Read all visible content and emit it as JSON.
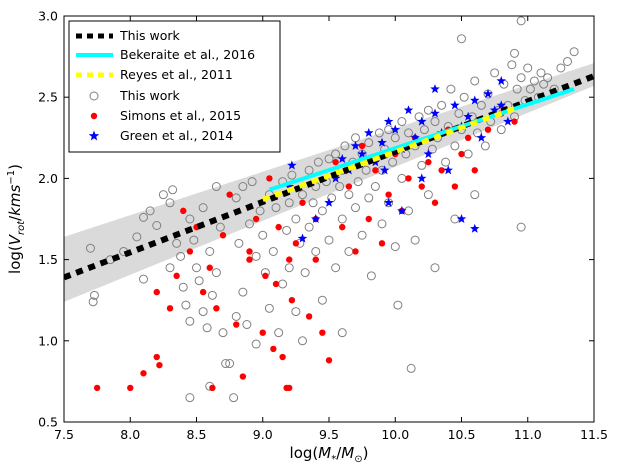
{
  "chart_data": {
    "type": "scatter",
    "xlabel": "log(M_*/M_⊙)",
    "ylabel": "log(V_rot/kms^-1)",
    "xlim": [
      7.5,
      11.5
    ],
    "ylim": [
      0.5,
      3.0
    ],
    "xticks": [
      "7.5",
      "8.0",
      "8.5",
      "9.0",
      "9.5",
      "10.0",
      "10.5",
      "11.0",
      "11.5"
    ],
    "yticks": [
      "0.5",
      "1.0",
      "1.5",
      "2.0",
      "2.5",
      "3.0"
    ],
    "legend_position": "top-left",
    "grid": false,
    "series": [
      {
        "name": "This work",
        "kind": "line",
        "style": "dashed",
        "color": "#000000",
        "x": [
          7.5,
          11.5
        ],
        "y": [
          1.39,
          2.63
        ]
      },
      {
        "name": "Bekeraite et al., 2016",
        "kind": "line",
        "style": "solid",
        "color": "#00ffff",
        "x": [
          9.05,
          11.35
        ],
        "y": [
          1.93,
          2.55
        ]
      },
      {
        "name": "Reyes et al., 2011",
        "kind": "line",
        "style": "dashed",
        "color": "#ffff00",
        "x": [
          9.0,
          10.9
        ],
        "y": [
          1.87,
          2.43
        ]
      },
      {
        "name": "This work",
        "kind": "scatter",
        "marker": "open-circle",
        "color": "#808080",
        "points": [
          [
            7.7,
            1.57
          ],
          [
            7.73,
            1.28
          ],
          [
            7.72,
            1.24
          ],
          [
            7.85,
            1.5
          ],
          [
            7.95,
            1.55
          ],
          [
            8.05,
            1.64
          ],
          [
            8.1,
            1.76
          ],
          [
            8.15,
            1.8
          ],
          [
            8.2,
            1.71
          ],
          [
            8.1,
            1.38
          ],
          [
            8.25,
            1.9
          ],
          [
            8.3,
            1.85
          ],
          [
            8.3,
            1.45
          ],
          [
            8.35,
            1.6
          ],
          [
            8.32,
            1.93
          ],
          [
            8.38,
            1.52
          ],
          [
            8.4,
            1.33
          ],
          [
            8.42,
            1.22
          ],
          [
            8.45,
            1.75
          ],
          [
            8.45,
            1.12
          ],
          [
            8.48,
            1.62
          ],
          [
            8.5,
            1.45
          ],
          [
            8.52,
            1.37
          ],
          [
            8.55,
            1.82
          ],
          [
            8.55,
            1.18
          ],
          [
            8.58,
            1.08
          ],
          [
            8.6,
            1.55
          ],
          [
            8.62,
            1.28
          ],
          [
            8.65,
            1.95
          ],
          [
            8.65,
            1.42
          ],
          [
            8.68,
            1.7
          ],
          [
            8.7,
            1.05
          ],
          [
            8.72,
            0.86
          ],
          [
            8.75,
            0.86
          ],
          [
            8.78,
            0.65
          ],
          [
            8.8,
            1.88
          ],
          [
            8.82,
            1.6
          ],
          [
            8.85,
            1.95
          ],
          [
            8.85,
            1.3
          ],
          [
            8.88,
            1.1
          ],
          [
            8.9,
            1.72
          ],
          [
            8.92,
            1.98
          ],
          [
            8.95,
            1.52
          ],
          [
            8.95,
            0.98
          ],
          [
            8.98,
            1.8
          ],
          [
            9.0,
            1.65
          ],
          [
            9.02,
            1.42
          ],
          [
            9.05,
            1.9
          ],
          [
            9.05,
            1.2
          ],
          [
            9.08,
            1.55
          ],
          [
            9.1,
            1.82
          ],
          [
            9.12,
            1.05
          ],
          [
            9.15,
            1.98
          ],
          [
            9.15,
            1.35
          ],
          [
            9.18,
            1.68
          ],
          [
            9.2,
            1.85
          ],
          [
            9.2,
            1.45
          ],
          [
            9.22,
            2.02
          ],
          [
            9.25,
            1.75
          ],
          [
            9.25,
            1.18
          ],
          [
            9.28,
            1.6
          ],
          [
            9.3,
            1.9
          ],
          [
            9.32,
            1.42
          ],
          [
            9.35,
            2.05
          ],
          [
            9.35,
            1.7
          ],
          [
            9.38,
            1.85
          ],
          [
            9.4,
            1.95
          ],
          [
            9.4,
            1.55
          ],
          [
            9.42,
            2.1
          ],
          [
            9.45,
            1.8
          ],
          [
            9.45,
            1.25
          ],
          [
            9.48,
            1.98
          ],
          [
            9.5,
            2.12
          ],
          [
            9.5,
            1.62
          ],
          [
            9.52,
            1.88
          ],
          [
            9.55,
            2.15
          ],
          [
            9.55,
            1.45
          ],
          [
            9.58,
            1.95
          ],
          [
            9.6,
            2.05
          ],
          [
            9.6,
            1.75
          ],
          [
            9.62,
            2.2
          ],
          [
            9.65,
            1.9
          ],
          [
            9.65,
            1.55
          ],
          [
            9.68,
            2.1
          ],
          [
            9.7,
            2.25
          ],
          [
            9.7,
            1.82
          ],
          [
            9.72,
            1.98
          ],
          [
            9.75,
            2.15
          ],
          [
            9.75,
            1.65
          ],
          [
            9.78,
            2.05
          ],
          [
            9.8,
            2.22
          ],
          [
            9.8,
            1.88
          ],
          [
            9.82,
            1.4
          ],
          [
            9.85,
            2.12
          ],
          [
            9.85,
            1.95
          ],
          [
            9.88,
            2.28
          ],
          [
            9.9,
            2.05
          ],
          [
            9.9,
            1.72
          ],
          [
            9.92,
            2.18
          ],
          [
            9.95,
            2.3
          ],
          [
            9.95,
            1.85
          ],
          [
            9.98,
            2.1
          ],
          [
            10.0,
            2.25
          ],
          [
            10.0,
            1.58
          ],
          [
            10.02,
            1.22
          ],
          [
            10.05,
            2.35
          ],
          [
            10.05,
            2.0
          ],
          [
            10.08,
            2.15
          ],
          [
            10.1,
            2.28
          ],
          [
            10.1,
            1.8
          ],
          [
            10.12,
            0.83
          ],
          [
            10.15,
            2.2
          ],
          [
            10.15,
            1.62
          ],
          [
            10.18,
            2.38
          ],
          [
            10.2,
            2.08
          ],
          [
            10.22,
            2.3
          ],
          [
            10.25,
            1.9
          ],
          [
            10.25,
            2.42
          ],
          [
            10.28,
            2.18
          ],
          [
            10.3,
            2.35
          ],
          [
            10.3,
            1.45
          ],
          [
            10.32,
            2.25
          ],
          [
            10.35,
            2.45
          ],
          [
            10.38,
            2.1
          ],
          [
            10.4,
            2.32
          ],
          [
            10.42,
            2.55
          ],
          [
            10.45,
            2.2
          ],
          [
            10.45,
            1.75
          ],
          [
            10.48,
            2.4
          ],
          [
            10.5,
            2.3
          ],
          [
            10.52,
            2.5
          ],
          [
            10.55,
            2.15
          ],
          [
            10.58,
            2.38
          ],
          [
            10.6,
            2.6
          ],
          [
            10.6,
            1.9
          ],
          [
            10.62,
            2.28
          ],
          [
            10.65,
            2.45
          ],
          [
            10.68,
            2.2
          ],
          [
            10.7,
            2.52
          ],
          [
            10.72,
            2.35
          ],
          [
            10.75,
            2.65
          ],
          [
            10.78,
            2.42
          ],
          [
            10.8,
            2.3
          ],
          [
            10.82,
            2.58
          ],
          [
            10.85,
            2.45
          ],
          [
            10.88,
            2.7
          ],
          [
            10.9,
            2.38
          ],
          [
            10.92,
            2.55
          ],
          [
            10.95,
            2.62
          ],
          [
            10.95,
            1.7
          ],
          [
            10.98,
            2.48
          ],
          [
            11.0,
            2.68
          ],
          [
            11.02,
            2.55
          ],
          [
            11.05,
            2.6
          ],
          [
            11.08,
            2.5
          ],
          [
            11.1,
            2.65
          ],
          [
            11.12,
            2.58
          ],
          [
            11.15,
            2.62
          ],
          [
            11.2,
            2.55
          ],
          [
            11.25,
            2.68
          ],
          [
            11.3,
            2.72
          ],
          [
            11.35,
            2.78
          ],
          [
            10.95,
            2.97
          ],
          [
            10.9,
            2.77
          ],
          [
            10.5,
            2.86
          ],
          [
            8.8,
            1.15
          ],
          [
            8.6,
            0.72
          ],
          [
            8.45,
            0.65
          ],
          [
            9.3,
            1.0
          ],
          [
            9.6,
            1.05
          ]
        ]
      },
      {
        "name": "Simons et al., 2015",
        "kind": "scatter",
        "marker": "filled-circle",
        "color": "#ff0000",
        "points": [
          [
            7.75,
            0.71
          ],
          [
            8.0,
            0.71
          ],
          [
            8.1,
            0.8
          ],
          [
            8.2,
            0.9
          ],
          [
            8.22,
            0.85
          ],
          [
            8.2,
            1.3
          ],
          [
            8.3,
            1.2
          ],
          [
            8.35,
            1.4
          ],
          [
            8.4,
            1.8
          ],
          [
            8.45,
            1.55
          ],
          [
            8.5,
            1.7
          ],
          [
            8.55,
            1.3
          ],
          [
            8.6,
            1.45
          ],
          [
            8.62,
            0.71
          ],
          [
            8.65,
            1.2
          ],
          [
            8.7,
            1.65
          ],
          [
            8.75,
            1.9
          ],
          [
            8.8,
            1.1
          ],
          [
            8.85,
            0.78
          ],
          [
            8.9,
            1.5
          ],
          [
            8.95,
            1.75
          ],
          [
            9.0,
            1.05
          ],
          [
            9.02,
            1.4
          ],
          [
            9.05,
            2.0
          ],
          [
            9.08,
            0.95
          ],
          [
            9.1,
            1.35
          ],
          [
            9.12,
            1.7
          ],
          [
            9.15,
            0.9
          ],
          [
            9.18,
            0.71
          ],
          [
            9.2,
            0.71
          ],
          [
            9.22,
            1.25
          ],
          [
            9.25,
            1.6
          ],
          [
            9.3,
            1.85
          ],
          [
            9.35,
            1.15
          ],
          [
            9.4,
            1.5
          ],
          [
            9.45,
            1.05
          ],
          [
            9.5,
            0.88
          ],
          [
            9.55,
            2.1
          ],
          [
            9.6,
            1.7
          ],
          [
            9.65,
            1.95
          ],
          [
            9.7,
            1.55
          ],
          [
            9.75,
            2.2
          ],
          [
            9.8,
            1.75
          ],
          [
            9.85,
            2.05
          ],
          [
            9.9,
            1.6
          ],
          [
            9.95,
            1.9
          ],
          [
            10.0,
            2.15
          ],
          [
            10.05,
            1.8
          ],
          [
            10.1,
            2.0
          ],
          [
            10.15,
            2.25
          ],
          [
            10.2,
            1.95
          ],
          [
            10.25,
            2.1
          ],
          [
            10.3,
            1.85
          ],
          [
            10.35,
            2.05
          ],
          [
            10.4,
            2.3
          ],
          [
            10.45,
            1.95
          ],
          [
            10.5,
            2.15
          ],
          [
            10.55,
            2.25
          ],
          [
            10.6,
            2.05
          ],
          [
            10.7,
            2.3
          ],
          [
            10.8,
            2.4
          ],
          [
            10.9,
            2.35
          ],
          [
            9.4,
            1.75
          ],
          [
            9.2,
            1.5
          ],
          [
            8.9,
            1.55
          ]
        ]
      },
      {
        "name": "Green et al., 2014",
        "kind": "scatter",
        "marker": "star",
        "color": "#0000ff",
        "points": [
          [
            9.2,
            1.95
          ],
          [
            9.22,
            2.08
          ],
          [
            9.3,
            1.63
          ],
          [
            9.4,
            1.75
          ],
          [
            9.5,
            1.85
          ],
          [
            9.55,
            2.0
          ],
          [
            9.6,
            2.12
          ],
          [
            9.65,
            2.05
          ],
          [
            9.7,
            2.2
          ],
          [
            9.75,
            2.15
          ],
          [
            9.8,
            2.28
          ],
          [
            9.85,
            2.1
          ],
          [
            9.9,
            2.22
          ],
          [
            9.92,
            2.05
          ],
          [
            9.95,
            2.35
          ],
          [
            10.0,
            2.3
          ],
          [
            10.05,
            2.18
          ],
          [
            10.1,
            2.42
          ],
          [
            10.15,
            2.25
          ],
          [
            10.2,
            2.35
          ],
          [
            10.25,
            2.15
          ],
          [
            10.3,
            2.4
          ],
          [
            10.35,
            2.28
          ],
          [
            10.4,
            2.05
          ],
          [
            10.45,
            2.45
          ],
          [
            10.5,
            2.32
          ],
          [
            10.55,
            2.38
          ],
          [
            10.6,
            2.48
          ],
          [
            10.65,
            2.25
          ],
          [
            10.7,
            2.52
          ],
          [
            10.75,
            2.42
          ],
          [
            10.8,
            2.6
          ],
          [
            10.85,
            2.35
          ],
          [
            10.5,
            1.75
          ],
          [
            10.6,
            1.69
          ],
          [
            10.8,
            2.45
          ],
          [
            10.2,
            2.0
          ],
          [
            10.3,
            2.55
          ],
          [
            10.05,
            1.8
          ],
          [
            9.95,
            1.85
          ]
        ]
      }
    ],
    "bands": [
      {
        "series": "This work",
        "color": "#d3d3d3",
        "x": [
          7.5,
          11.5
        ],
        "lower": [
          1.24,
          2.57
        ],
        "upper": [
          1.64,
          2.71
        ]
      }
    ]
  },
  "legend": {
    "items": [
      {
        "label": "This work",
        "marker": "dashed-black"
      },
      {
        "label": "Bekeraite et al., 2016",
        "marker": "solid-cyan"
      },
      {
        "label": "Reyes et al., 2011",
        "marker": "dashed-yellow"
      },
      {
        "label": "This work",
        "marker": "open-circle"
      },
      {
        "label": "Simons et al., 2015",
        "marker": "red-dot"
      },
      {
        "label": "Green et al., 2014",
        "marker": "blue-star"
      }
    ]
  }
}
